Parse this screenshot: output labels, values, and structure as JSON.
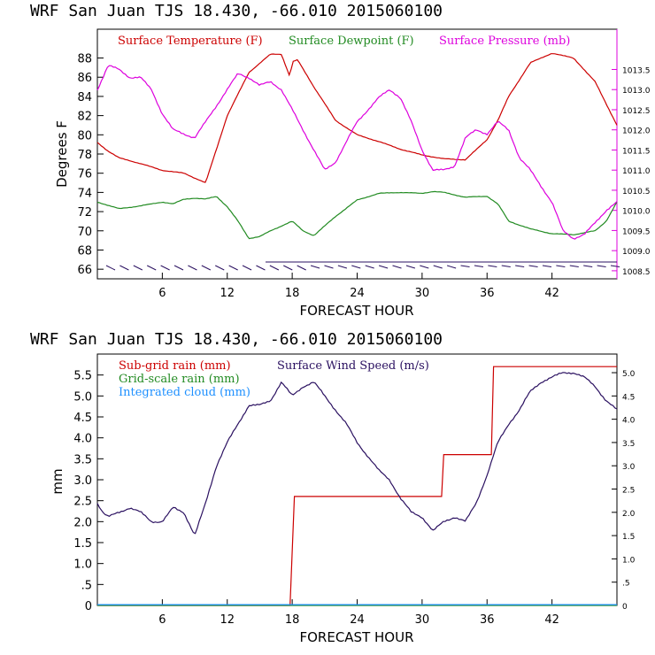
{
  "chart_data": [
    {
      "type": "line",
      "title": "WRF   San Juan TJS  18.430, -66.010  2015060100",
      "xlabel": "FORECAST HOUR",
      "ylabel": "Degrees F",
      "xlim": [
        0,
        48
      ],
      "ylim": [
        65,
        91
      ],
      "xticks": [
        "6",
        "12",
        "18",
        "24",
        "30",
        "36",
        "42"
      ],
      "yticks": [
        "66",
        "68",
        "70",
        "72",
        "74",
        "76",
        "78",
        "80",
        "82",
        "84",
        "86",
        "88"
      ],
      "y2lim": [
        1008.3,
        1014.5
      ],
      "y2ticks": [
        "1008.5",
        "1009.0",
        "1009.5",
        "1010.0",
        "1010.5",
        "1011.0",
        "1011.5",
        "1012.0",
        "1012.5",
        "1013.0",
        "1013.5"
      ],
      "grid": false,
      "legend": "top",
      "series": [
        {
          "name": "Surface Temperature (F)",
          "color": "#cc0000",
          "axis": "left",
          "x": [
            0,
            1,
            2,
            4,
            6,
            8,
            9,
            10,
            11,
            12,
            14,
            16,
            17,
            17.8,
            18,
            18.5,
            20,
            22,
            24,
            26,
            28,
            30,
            32,
            34,
            36,
            37,
            38,
            40,
            42,
            44,
            46,
            48
          ],
          "values": [
            79.2,
            78.3,
            77.6,
            77.0,
            76.3,
            76.0,
            75.5,
            75.0,
            78.5,
            82.0,
            86.5,
            88.4,
            88.4,
            86.0,
            87.6,
            87.8,
            85.0,
            81.5,
            80.0,
            79.3,
            78.5,
            77.9,
            77.5,
            77.4,
            79.5,
            81.5,
            84.0,
            87.5,
            88.5,
            88.0,
            85.5,
            81.0
          ]
        },
        {
          "name": "Surface Dewpoint (F)",
          "color": "#228b22",
          "axis": "left",
          "x": [
            0,
            2,
            4,
            6,
            7,
            8,
            9,
            10,
            11,
            12,
            13,
            14,
            15,
            16,
            17,
            18,
            19,
            20,
            21,
            22,
            24,
            26,
            28,
            30,
            31,
            32,
            34,
            36,
            37,
            38,
            40,
            42,
            44,
            46,
            47,
            48
          ],
          "values": [
            73.0,
            72.3,
            72.6,
            73.0,
            72.8,
            73.3,
            73.4,
            73.3,
            73.6,
            72.5,
            71.0,
            69.2,
            69.4,
            70.0,
            70.5,
            71.0,
            70.0,
            69.5,
            70.5,
            71.5,
            73.2,
            73.9,
            74.0,
            73.9,
            74.1,
            74.0,
            73.5,
            73.6,
            72.8,
            71.0,
            70.2,
            69.7,
            69.6,
            70.0,
            71.0,
            73.0
          ]
        },
        {
          "name": "Surface Pressure (mb)",
          "color": "#dd00dd",
          "axis": "right",
          "x": [
            0,
            1,
            2,
            3,
            4,
            5,
            6,
            7,
            8,
            9,
            10,
            11,
            12,
            13,
            14,
            15,
            16,
            17,
            18,
            19,
            20,
            21,
            22,
            23,
            24,
            25,
            26,
            27,
            28,
            29,
            30,
            31,
            32,
            33,
            34,
            35,
            36,
            37,
            38,
            39,
            40,
            41,
            42,
            43,
            44,
            45,
            46,
            47,
            48
          ],
          "values": [
            1013.0,
            1013.6,
            1013.5,
            1013.3,
            1013.3,
            1013.0,
            1012.4,
            1012.0,
            1011.9,
            1011.8,
            1012.2,
            1012.6,
            1013.0,
            1013.4,
            1013.3,
            1013.1,
            1013.2,
            1013.0,
            1012.5,
            1012.0,
            1011.5,
            1011.0,
            1011.2,
            1011.7,
            1012.2,
            1012.5,
            1012.8,
            1013.0,
            1012.8,
            1012.2,
            1011.5,
            1011.0,
            1011.0,
            1011.1,
            1011.8,
            1012.0,
            1011.9,
            1012.2,
            1012.0,
            1011.3,
            1011.0,
            1010.6,
            1010.2,
            1009.5,
            1009.3,
            1009.4,
            1009.7,
            1010.0,
            1010.2
          ]
        }
      ],
      "wind_barbs": 38
    },
    {
      "type": "line",
      "title": "WRF  San Juan TJS  18.430, -66.010  2015060100",
      "xlabel": "FORECAST HOUR",
      "ylabel": "mm",
      "xlim": [
        0,
        48
      ],
      "ylim": [
        0,
        6.0
      ],
      "xticks": [
        "6",
        "12",
        "18",
        "24",
        "30",
        "36",
        "42"
      ],
      "yticks": [
        "0",
        ".5",
        "1.0",
        "1.5",
        "2.0",
        "2.5",
        "3.0",
        "3.5",
        "4.0",
        "4.5",
        "5.0",
        "5.5"
      ],
      "y2lim": [
        0,
        5.4
      ],
      "y2ticks": [
        "0",
        ".5",
        "1.0",
        "1.5",
        "2.0",
        "2.5",
        "3.0",
        "3.5",
        "4.0",
        "4.5",
        "5.0"
      ],
      "grid": false,
      "legend": "top-left",
      "series": [
        {
          "name": "Sub-grid rain (mm)",
          "color": "#cc0000",
          "axis": "left",
          "x": [
            0,
            17.8,
            18.2,
            31.8,
            32.0,
            36.4,
            36.6,
            48
          ],
          "values": [
            0,
            0,
            2.6,
            2.6,
            3.6,
            3.6,
            5.7,
            5.7
          ]
        },
        {
          "name": "Grid-scale rain (mm)",
          "color": "#228b22",
          "axis": "left",
          "x": [
            0,
            48
          ],
          "values": [
            0,
            0
          ]
        },
        {
          "name": "Integrated cloud (mm)",
          "color": "#1e90ff",
          "axis": "left",
          "x": [
            0,
            48
          ],
          "values": [
            0.02,
            0.02
          ]
        },
        {
          "name": "Surface Wind Speed (m/s)",
          "color": "#2a1060",
          "axis": "right",
          "x": [
            0,
            0.5,
            1,
            2,
            3,
            4,
            5,
            6,
            7,
            8,
            9,
            10,
            11,
            12,
            13,
            14,
            15,
            16,
            17,
            18,
            19,
            20,
            21,
            22,
            23,
            24,
            25,
            26,
            27,
            28,
            29,
            30,
            31,
            32,
            33,
            34,
            35,
            36,
            37,
            38,
            39,
            40,
            41,
            42,
            43,
            44,
            45,
            46,
            47,
            48
          ],
          "values": [
            2.2,
            2.0,
            1.9,
            2.0,
            2.1,
            2.0,
            1.8,
            1.8,
            2.1,
            2.0,
            1.5,
            2.2,
            3.0,
            3.5,
            3.9,
            4.3,
            4.3,
            4.4,
            4.8,
            4.5,
            4.7,
            4.8,
            4.5,
            4.2,
            3.9,
            3.5,
            3.2,
            2.9,
            2.7,
            2.3,
            2.0,
            1.9,
            1.6,
            1.8,
            1.9,
            1.8,
            2.2,
            2.8,
            3.5,
            3.9,
            4.2,
            4.6,
            4.8,
            4.9,
            5.0,
            5.0,
            4.9,
            4.7,
            4.4,
            4.2
          ]
        }
      ]
    }
  ]
}
